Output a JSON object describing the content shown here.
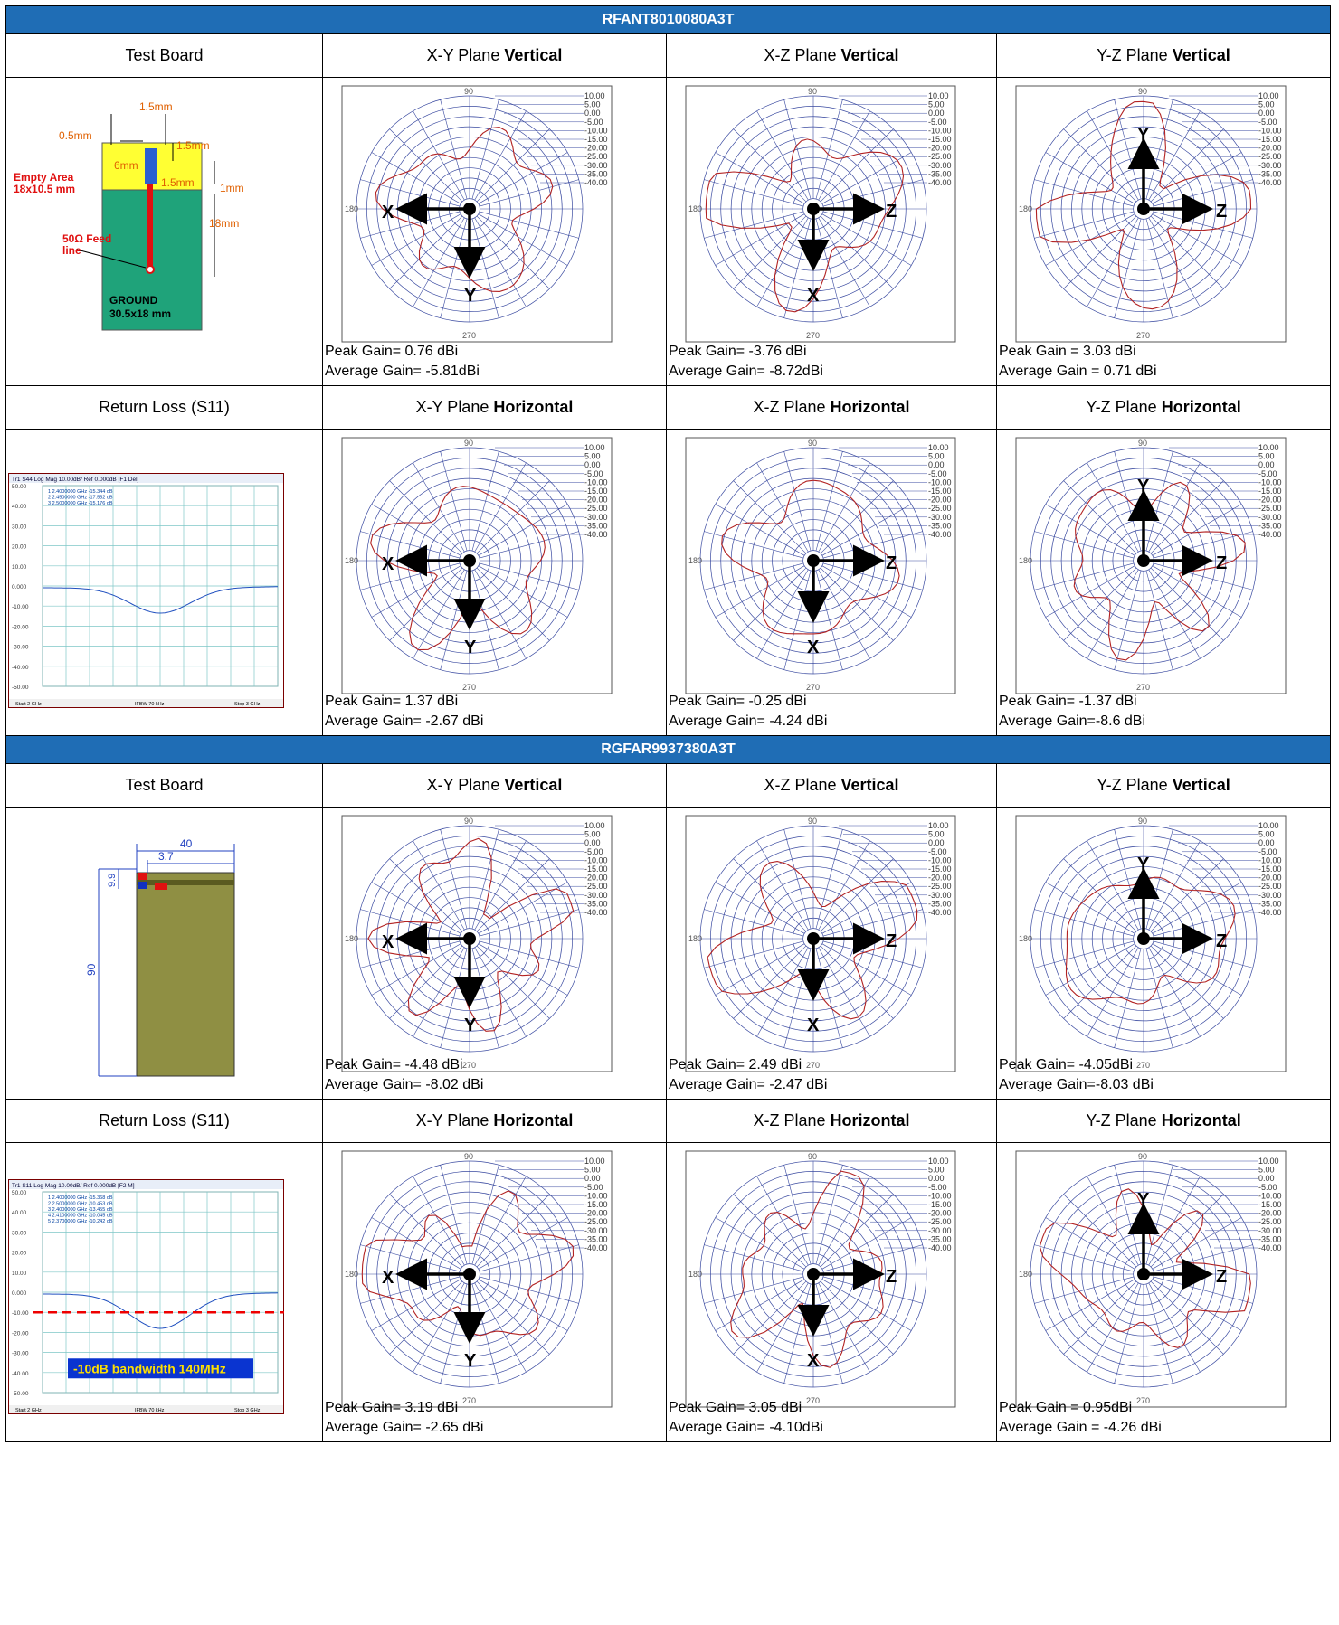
{
  "sections": [
    {
      "title": "RFANT8010080A3T",
      "row1": {
        "headers": [
          {
            "label": "Test Board",
            "mode": ""
          },
          {
            "label": "X-Y Plane ",
            "mode": "Vertical"
          },
          {
            "label": "X-Z Plane ",
            "mode": "Vertical"
          },
          {
            "label": "Y-Z Plane ",
            "mode": "Vertical"
          }
        ],
        "board": {
          "dims": [
            "1.5mm",
            "0.5mm",
            "1.5mm",
            "6mm",
            "1.5mm",
            "1mm",
            "18mm"
          ],
          "empty_area": [
            "Empty Area",
            "18x10.5 mm"
          ],
          "feed": [
            "50Ω Feed",
            "line"
          ],
          "ground": [
            "GROUND",
            "30.5x18 mm"
          ]
        },
        "patterns": [
          {
            "axes": [
              "X",
              "Y"
            ],
            "peak": "Peak Gain= 0.76 dBi",
            "avg": "Average Gain= -5.81dBi"
          },
          {
            "axes": [
              "Z",
              "X"
            ],
            "peak": "Peak Gain= -3.76 dBi",
            "avg": "Average Gain= -8.72dBi"
          },
          {
            "axes": [
              "Z",
              "Y"
            ],
            "peak": "Peak Gain = 3.03 dBi",
            "avg": "Average Gain = 0.71 dBi"
          }
        ]
      },
      "row2": {
        "headers": [
          {
            "label": "Return Loss (S11)",
            "mode": ""
          },
          {
            "label": "X-Y Plane ",
            "mode": "Horizontal"
          },
          {
            "label": "X-Z Plane ",
            "mode": "Horizontal"
          },
          {
            "label": "Y-Z Plane ",
            "mode": "Horizontal"
          }
        ],
        "s11": {
          "header": "Tr1 S44 Log Mag 10.00dB/ Ref 0.000dB [F1 Del]",
          "markers": [
            "1  2.4000000 GHz -15.344 dB",
            "2  2.4500000 GHz -17.552 dB",
            "3  2.5000000 GHz -15.176 dB"
          ],
          "yticks": [
            "50.00",
            "40.00",
            "30.00",
            "20.00",
            "10.00",
            "0.000",
            "-10.00",
            "-20.00",
            "-30.00",
            "-40.00",
            "-50.00"
          ],
          "footer": [
            "Start 2 GHz",
            "IFBW 70 kHz",
            "Stop 3 GHz"
          ],
          "bandwidth_label": ""
        },
        "patterns": [
          {
            "axes": [
              "X",
              "Y"
            ],
            "peak": "Peak Gain= 1.37 dBi",
            "avg": "Average Gain= -2.67 dBi"
          },
          {
            "axes": [
              "Z",
              "X"
            ],
            "peak": "Peak Gain= -0.25 dBi",
            "avg": "Average Gain= -4.24 dBi"
          },
          {
            "axes": [
              "Z",
              "Y"
            ],
            "peak": "Peak Gain= -1.37 dBi",
            "avg": "Average Gain=-8.6 dBi"
          }
        ]
      }
    },
    {
      "title": "RGFAR9937380A3T",
      "row1": {
        "headers": [
          {
            "label": "Test Board",
            "mode": ""
          },
          {
            "label": "X-Y Plane ",
            "mode": "Vertical"
          },
          {
            "label": "X-Z Plane ",
            "mode": "Vertical"
          },
          {
            "label": "Y-Z Plane ",
            "mode": "Vertical"
          }
        ],
        "board2": {
          "width": "40",
          "offset": "3.7",
          "small": "9.9",
          "length": "90"
        },
        "patterns": [
          {
            "axes": [
              "X",
              "Y"
            ],
            "peak": "Peak Gain= -4.48 dBi",
            "avg": "Average Gain= -8.02 dBi"
          },
          {
            "axes": [
              "Z",
              "X"
            ],
            "peak": "Peak Gain= 2.49 dBi",
            "avg": "Average Gain= -2.47 dBi"
          },
          {
            "axes": [
              "Z",
              "Y"
            ],
            "peak": "Peak Gain= -4.05dBi",
            "avg": "Average Gain=-8.03 dBi"
          }
        ]
      },
      "row2": {
        "headers": [
          {
            "label": "Return Loss (S11)",
            "mode": ""
          },
          {
            "label": "X-Y Plane ",
            "mode": "Horizontal"
          },
          {
            "label": "X-Z Plane ",
            "mode": "Horizontal"
          },
          {
            "label": "Y-Z Plane ",
            "mode": "Horizontal"
          }
        ],
        "s11": {
          "header": "Tr1 S11 Log Mag 10.00dB/ Ref 0.000dB [F2 M]",
          "markers": [
            "1  2.4000000 GHz -15.368 dB",
            "2  2.5000000 GHz -10.453 dB",
            "3  2.4000000 GHz -13.455 dB",
            "4  2.4100000 GHz -10.045 dB",
            "5  2.3700000 GHz -10.242 dB"
          ],
          "yticks": [
            "50.00",
            "40.00",
            "30.00",
            "20.00",
            "10.00",
            "0.000",
            "-10.00",
            "-20.00",
            "-30.00",
            "-40.00",
            "-50.00"
          ],
          "footer": [
            "Start 2 GHz",
            "IFBW 70 kHz",
            "Stop 3 GHz"
          ],
          "bandwidth_label": "-10dB bandwidth 140MHz"
        },
        "patterns": [
          {
            "axes": [
              "X",
              "Y"
            ],
            "peak": "Peak Gain= 3.19 dBi",
            "avg": "Average Gain= -2.65 dBi"
          },
          {
            "axes": [
              "Z",
              "X"
            ],
            "peak": "Peak Gain= 3.05 dBi",
            "avg": "Average Gain= -4.10dBi"
          },
          {
            "axes": [
              "Z",
              "Y"
            ],
            "peak": "Peak Gain = 0.95dBi",
            "avg": "Average Gain = -4.26 dBi"
          }
        ]
      }
    }
  ],
  "polar": {
    "angles": [
      "90",
      "180",
      "270"
    ],
    "rings": [
      "10.00",
      "5.00",
      "0.00",
      "-5.00",
      "-10.00",
      "-15.00",
      "-20.00",
      "-25.00",
      "-30.00",
      "-35.00",
      "-40.00"
    ]
  },
  "colors": {
    "header_bar": "#1f6db5",
    "pattern_trace": "#b22222",
    "polar_grid": "#3a4aa0",
    "s11_trace": "#1f4fbf",
    "board_ground": "#1fa37a",
    "empty_area": "#ffff33",
    "board2_body": "#8f8f43"
  }
}
